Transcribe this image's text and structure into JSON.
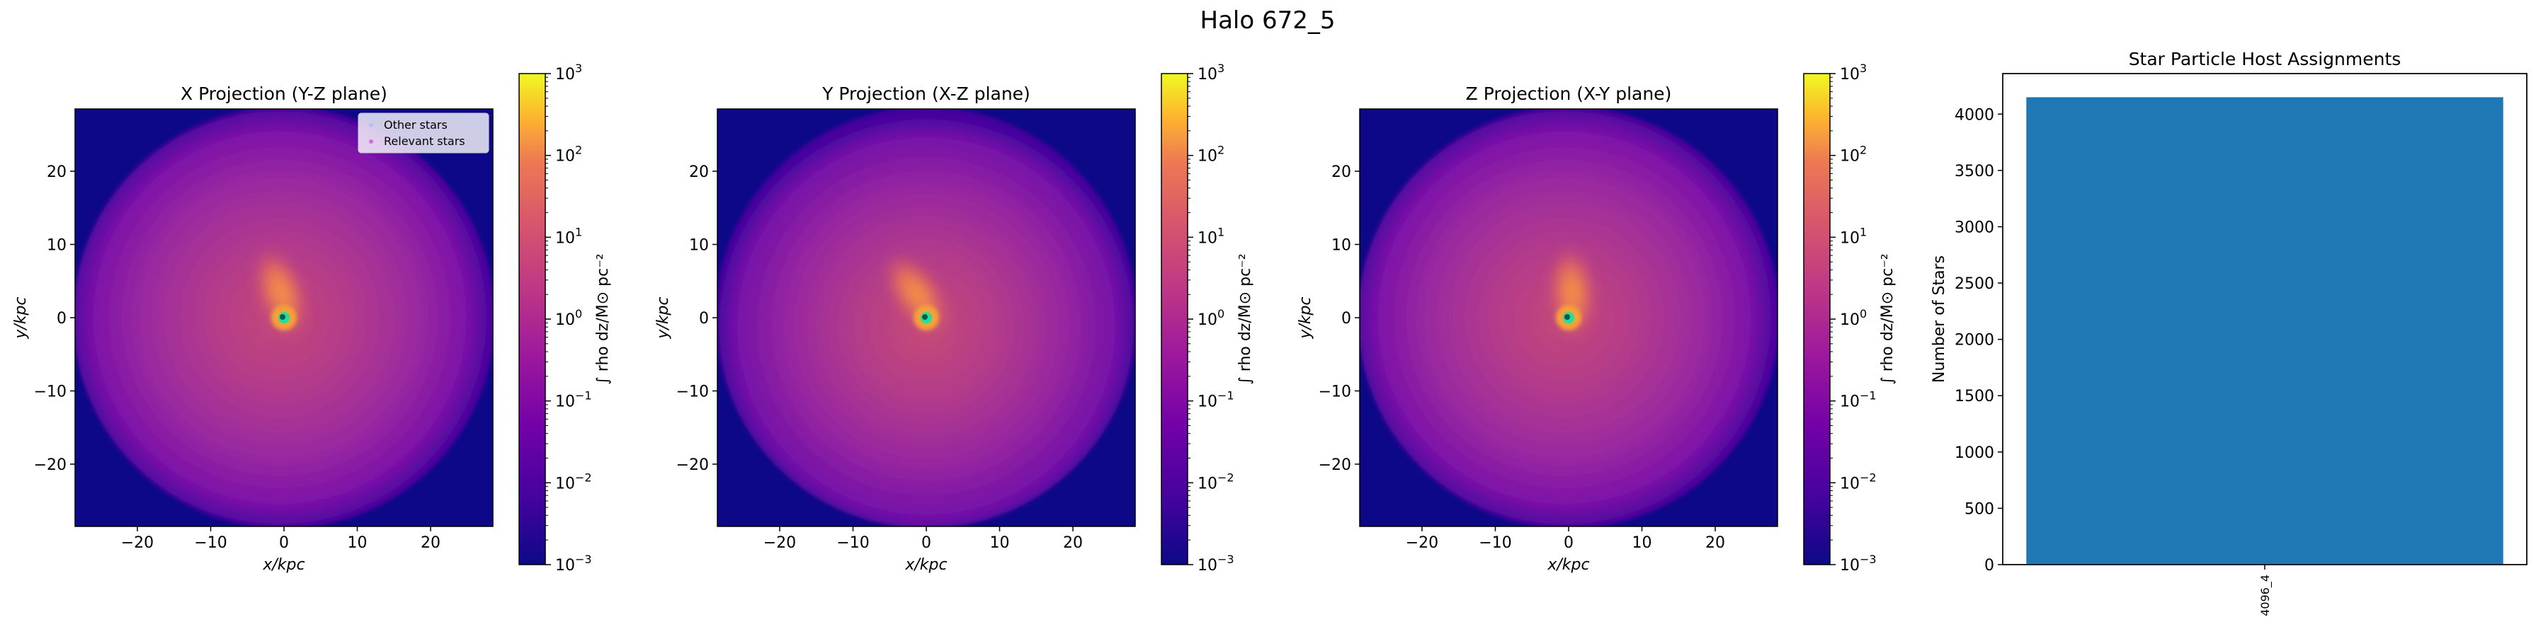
{
  "figure": {
    "suptitle": "Halo 672_5"
  },
  "colors": {
    "bg_floor": "#0d0887",
    "bar": "#1f77b4",
    "legend_other": "#bdbdf0",
    "legend_relevant": "#d070d0",
    "center_marker": "#20e0a0"
  },
  "colormap": "plasma",
  "projections": [
    {
      "title": "X Projection (Y-Z plane)",
      "xlabel": "x/kpc",
      "ylabel": "y/kpc",
      "xlim": [
        -28.5,
        28.5
      ],
      "ylim": [
        -28.5,
        28.5
      ],
      "xticks": [
        -20,
        -10,
        0,
        10,
        20
      ],
      "yticks": [
        -20,
        -10,
        0,
        10,
        20
      ],
      "xticklabels": [
        "−20",
        "−10",
        "0",
        "10",
        "20"
      ],
      "yticklabels": [
        "−20",
        "−10",
        "0",
        "10",
        "20"
      ],
      "legend": [
        "Other stars",
        "Relevant stars"
      ],
      "colorbar": {
        "label": "∫ rho dz/M⊙ pc⁻²",
        "scale": "log",
        "ticklabels": [
          {
            "base": "10",
            "exp": "3"
          },
          {
            "base": "10",
            "exp": "2"
          },
          {
            "base": "10",
            "exp": "1"
          },
          {
            "base": "10",
            "exp": "0"
          },
          {
            "base": "10",
            "exp": "−1"
          },
          {
            "base": "10",
            "exp": "−2"
          },
          {
            "base": "10",
            "exp": "−3"
          }
        ]
      }
    },
    {
      "title": "Y Projection (X-Z plane)",
      "xlabel": "x/kpc",
      "ylabel": "y/kpc",
      "xlim": [
        -28.5,
        28.5
      ],
      "ylim": [
        -28.5,
        28.5
      ],
      "xticks": [
        -20,
        -10,
        0,
        10,
        20
      ],
      "yticks": [
        -20,
        -10,
        0,
        10,
        20
      ],
      "xticklabels": [
        "−20",
        "−10",
        "0",
        "10",
        "20"
      ],
      "yticklabels": [
        "−20",
        "−10",
        "0",
        "10",
        "20"
      ],
      "colorbar": {
        "label": "∫ rho dz/M⊙ pc⁻²",
        "scale": "log",
        "ticklabels": [
          {
            "base": "10",
            "exp": "3"
          },
          {
            "base": "10",
            "exp": "2"
          },
          {
            "base": "10",
            "exp": "1"
          },
          {
            "base": "10",
            "exp": "0"
          },
          {
            "base": "10",
            "exp": "−1"
          },
          {
            "base": "10",
            "exp": "−2"
          },
          {
            "base": "10",
            "exp": "−3"
          }
        ]
      }
    },
    {
      "title": "Z Projection (X-Y plane)",
      "xlabel": "x/kpc",
      "ylabel": "y/kpc",
      "xlim": [
        -28.5,
        28.5
      ],
      "ylim": [
        -28.5,
        28.5
      ],
      "xticks": [
        -20,
        -10,
        0,
        10,
        20
      ],
      "yticks": [
        -20,
        -10,
        0,
        10,
        20
      ],
      "xticklabels": [
        "−20",
        "−10",
        "0",
        "10",
        "20"
      ],
      "yticklabels": [
        "−20",
        "−10",
        "0",
        "10",
        "20"
      ],
      "colorbar": {
        "label": "∫ rho dz/M⊙ pc⁻²",
        "scale": "log",
        "ticklabels": [
          {
            "base": "10",
            "exp": "3"
          },
          {
            "base": "10",
            "exp": "2"
          },
          {
            "base": "10",
            "exp": "1"
          },
          {
            "base": "10",
            "exp": "0"
          },
          {
            "base": "10",
            "exp": "−1"
          },
          {
            "base": "10",
            "exp": "−2"
          },
          {
            "base": "10",
            "exp": "−3"
          }
        ]
      }
    }
  ],
  "chart_data": [
    {
      "type": "heatmap",
      "title": "X Projection (Y-Z plane)",
      "xlabel": "x/kpc",
      "ylabel": "y/kpc",
      "xlim": [
        -28.5,
        28.5
      ],
      "ylim": [
        -28.5,
        28.5
      ],
      "colorbar_range": [
        0.001,
        1000
      ],
      "colorbar_scale": "log",
      "legend": [
        "Other stars",
        "Relevant stars"
      ],
      "legend_loc": "upper right"
    },
    {
      "type": "heatmap",
      "title": "Y Projection (X-Z plane)",
      "xlabel": "x/kpc",
      "ylabel": "y/kpc",
      "xlim": [
        -28.5,
        28.5
      ],
      "ylim": [
        -28.5,
        28.5
      ],
      "colorbar_range": [
        0.001,
        1000
      ],
      "colorbar_scale": "log"
    },
    {
      "type": "heatmap",
      "title": "Z Projection (X-Y plane)",
      "xlabel": "x/kpc",
      "ylabel": "y/kpc",
      "xlim": [
        -28.5,
        28.5
      ],
      "ylim": [
        -28.5,
        28.5
      ],
      "colorbar_range": [
        0.001,
        1000
      ],
      "colorbar_scale": "log"
    },
    {
      "type": "bar",
      "title": "Star Particle Host Assignments",
      "xlabel": "",
      "ylabel": "Number of Stars",
      "categories": [
        "4096_4"
      ],
      "values": [
        4150
      ],
      "ylim": [
        0,
        4360
      ],
      "yticks": [
        0,
        500,
        1000,
        1500,
        2000,
        2500,
        3000,
        3500,
        4000
      ]
    }
  ]
}
